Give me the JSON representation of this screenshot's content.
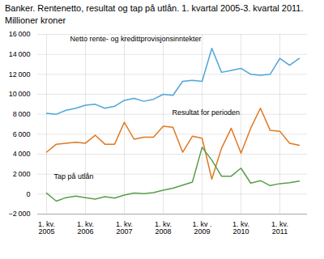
{
  "chart_data": {
    "type": "line",
    "title": "Banker. Rentenetto, resultat og tap på utlån. 1. kvartal 2005-3. kvartal 2011.",
    "subtitle": "Millioner kroner",
    "categories": [
      "1. kv.\n2005",
      null,
      null,
      null,
      "1. kv.\n2006",
      null,
      null,
      null,
      "1. kv.\n2007",
      null,
      null,
      null,
      "1. kv.\n2008",
      null,
      null,
      null,
      "1. kv .\n2009",
      null,
      null,
      null,
      "1. kv.\n2010",
      null,
      null,
      null,
      "1. kv.\n2011",
      null,
      null
    ],
    "series": [
      {
        "name": "Netto rente- og kredittprovisjonsinntekter",
        "color": "#4da6d8",
        "values": [
          8100,
          8000,
          8400,
          8600,
          8900,
          9000,
          8600,
          8800,
          9400,
          9600,
          9300,
          9500,
          10000,
          9900,
          11300,
          11400,
          11300,
          14600,
          12200,
          12400,
          12600,
          12000,
          11900,
          12000,
          13600,
          12900,
          13600
        ]
      },
      {
        "name": "Resultat for perioden",
        "color": "#e07820",
        "values": [
          4200,
          5000,
          5100,
          5200,
          5100,
          5900,
          5000,
          5000,
          7200,
          5500,
          5700,
          5700,
          6800,
          6700,
          4200,
          5800,
          5600,
          1500,
          4600,
          6600,
          4100,
          6600,
          8600,
          6400,
          6300,
          5100,
          4900
        ]
      },
      {
        "name": "Tap på utlån",
        "color": "#5a9e4a",
        "values": [
          100,
          -700,
          -350,
          -200,
          -350,
          -500,
          -250,
          -400,
          -100,
          100,
          50,
          150,
          400,
          600,
          900,
          1200,
          4700,
          3400,
          1800,
          1800,
          2600,
          1100,
          1350,
          850,
          1050,
          1150,
          1300
        ]
      }
    ],
    "ylim": [
      -2000,
      16000
    ],
    "yticks": [
      {
        "value": -2000,
        "label": "−2 000"
      },
      0,
      {
        "value": 2000,
        "label": "2 000"
      },
      {
        "value": 4000,
        "label": "4 000"
      },
      {
        "value": 6000,
        "label": "6 000"
      },
      {
        "value": 8000,
        "label": "8 000"
      },
      {
        "value": 10000,
        "label": "10 000"
      },
      {
        "value": 12000,
        "label": "12 000"
      },
      {
        "value": 14000,
        "label": "14 000"
      },
      {
        "value": 16000,
        "label": "16 000"
      }
    ],
    "grid": true
  }
}
